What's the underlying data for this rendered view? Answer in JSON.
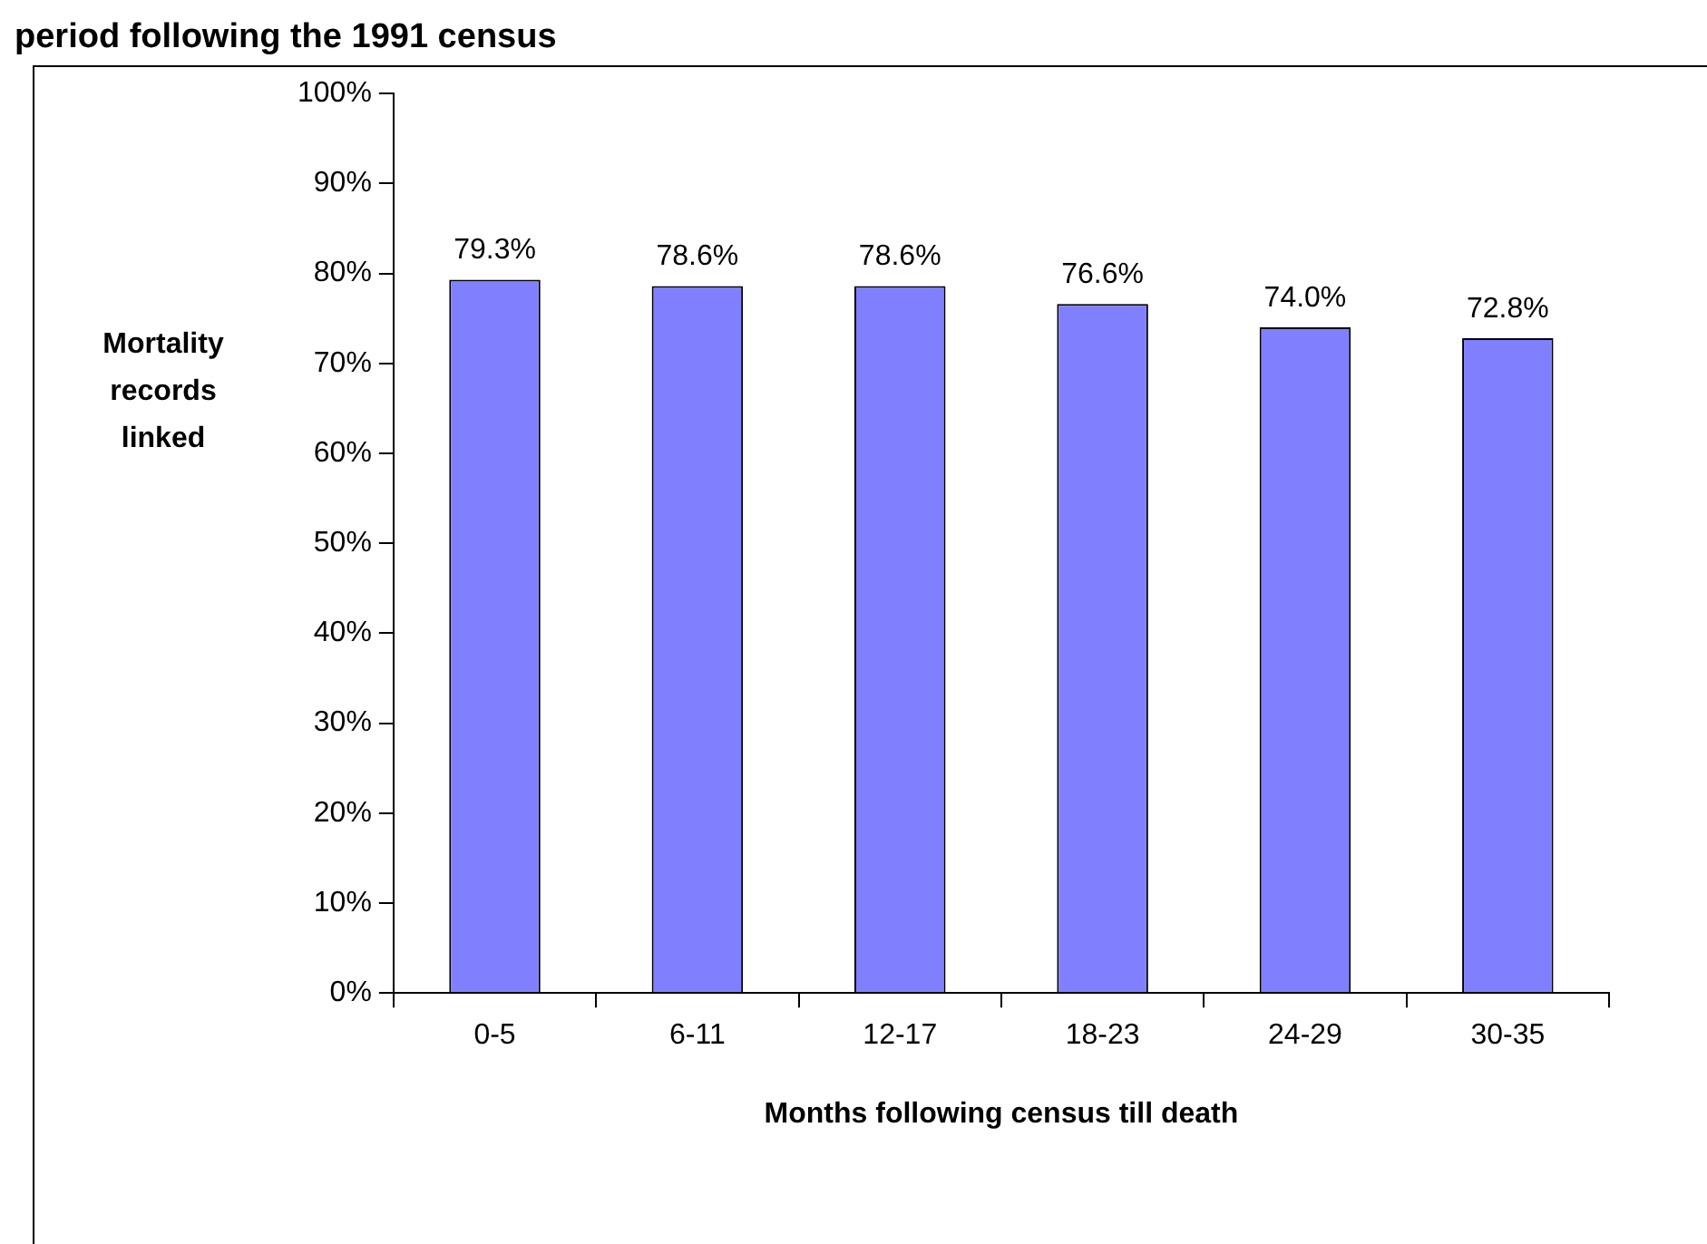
{
  "chart_data": {
    "type": "bar",
    "title": "period following the 1991 census",
    "xlabel": "Months following census till death",
    "ylabel": "Mortality records linked",
    "categories": [
      "0-5",
      "6-11",
      "12-17",
      "18-23",
      "24-29",
      "30-35"
    ],
    "values": [
      79.3,
      78.6,
      78.6,
      76.6,
      74.0,
      72.8
    ],
    "value_labels": [
      "79.3%",
      "78.6%",
      "78.6%",
      "76.6%",
      "74.0%",
      "72.8%"
    ],
    "color": "#8080ff",
    "ylim": [
      0,
      100
    ],
    "yticks": [
      {
        "value": 0,
        "label": "0%"
      },
      {
        "value": 10,
        "label": "10%"
      },
      {
        "value": 20,
        "label": "20%"
      },
      {
        "value": 30,
        "label": "30%"
      },
      {
        "value": 40,
        "label": "40%"
      },
      {
        "value": 50,
        "label": "50%"
      },
      {
        "value": 60,
        "label": "60%"
      },
      {
        "value": 70,
        "label": "70%"
      },
      {
        "value": 80,
        "label": "80%"
      },
      {
        "value": 90,
        "label": "90%"
      },
      {
        "value": 100,
        "label": "100%"
      }
    ],
    "grid": false,
    "legend": false
  }
}
